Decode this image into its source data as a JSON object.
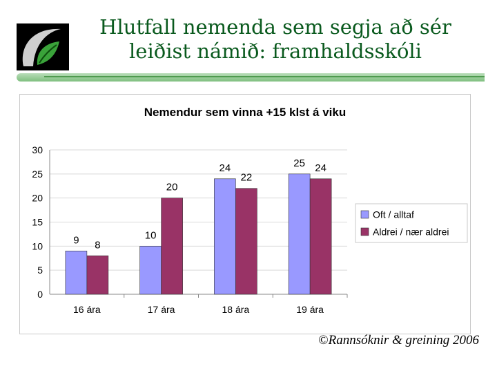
{
  "slide": {
    "title_line1": "Hlutfall nemenda sem segja að sér",
    "title_line2": "leiðist námið: framhaldsskóli",
    "copyright_symbol": "©",
    "copyright_text": "Rannsóknir & greining 2006",
    "logo_icon": "leaf-logo-icon"
  },
  "chart_data": {
    "type": "bar",
    "title": "Nemendur sem vinna +15 klst á viku",
    "xlabel": "",
    "ylabel": "",
    "categories": [
      "16 ára",
      "17 ára",
      "18 ára",
      "19 ára"
    ],
    "series": [
      {
        "name": "Oft / alltaf",
        "values": [
          9,
          10,
          24,
          25
        ],
        "color": "#9999ff"
      },
      {
        "name": "Aldrei / nær aldrei",
        "values": [
          8,
          20,
          22,
          24
        ],
        "color": "#993366"
      }
    ],
    "ylim": [
      0,
      30
    ],
    "yticks": [
      0,
      5,
      10,
      15,
      20,
      25,
      30
    ],
    "grid": true,
    "legend_position": "right",
    "data_labels": true
  }
}
